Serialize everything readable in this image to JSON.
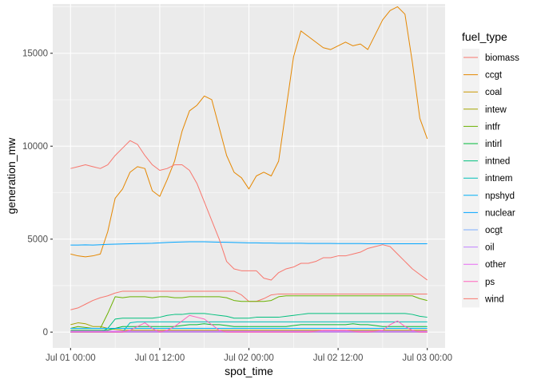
{
  "chart_data": {
    "type": "line",
    "xlabel": "spot_time",
    "ylabel": "generation_mw",
    "x_ticks": [
      "Jul 01 00:00",
      "Jul 01 12:00",
      "Jul 02 00:00",
      "Jul 02 12:00",
      "Jul 03 00:00"
    ],
    "x_tick_hours": [
      0,
      12,
      24,
      36,
      48
    ],
    "xlim_hours": [
      -2.4,
      50.4
    ],
    "y_ticks": [
      0,
      5000,
      10000,
      15000
    ],
    "ylim": [
      -850,
      17650
    ],
    "grid": true,
    "legend": {
      "title": "fuel_type",
      "position": "right"
    },
    "x_hours": [
      0,
      1,
      2,
      3,
      4,
      5,
      6,
      7,
      8,
      9,
      10,
      11,
      12,
      13,
      14,
      15,
      16,
      17,
      18,
      19,
      20,
      21,
      22,
      23,
      24,
      25,
      26,
      27,
      28,
      29,
      30,
      31,
      32,
      33,
      34,
      35,
      36,
      37,
      38,
      39,
      40,
      41,
      42,
      43,
      44,
      45,
      46,
      47,
      48
    ],
    "series": [
      {
        "name": "biomass",
        "color": "#F8766D",
        "values": [
          1200,
          1300,
          1500,
          1700,
          1850,
          1950,
          2100,
          2200,
          2200,
          2200,
          2200,
          2200,
          2200,
          2200,
          2200,
          2200,
          2200,
          2200,
          2200,
          2200,
          2200,
          2200,
          2200,
          2000,
          1650,
          1650,
          1800,
          2000,
          2050,
          2050,
          2050,
          2050,
          2050,
          2050,
          2050,
          2050,
          2050,
          2050,
          2050,
          2050,
          2050,
          2050,
          2050,
          2050,
          2050,
          2050,
          2050,
          2050,
          2050
        ]
      },
      {
        "name": "ccgt",
        "color": "#E58700",
        "values": [
          4200,
          4100,
          4050,
          4100,
          4200,
          5400,
          7200,
          7700,
          8600,
          8900,
          8800,
          7600,
          7300,
          8200,
          9200,
          10800,
          11900,
          12200,
          12700,
          12500,
          11000,
          9500,
          8600,
          8300,
          7700,
          8400,
          8600,
          8400,
          9200,
          12000,
          14800,
          16200,
          15900,
          15600,
          15300,
          15200,
          15400,
          15600,
          15400,
          15500,
          15200,
          16000,
          16800,
          17300,
          17500,
          17100,
          14500,
          11500,
          10400
        ]
      },
      {
        "name": "coal",
        "color": "#C99800",
        "values": [
          0,
          0,
          0,
          0,
          0,
          0,
          0,
          0,
          0,
          0,
          0,
          0,
          0,
          0,
          0,
          0,
          0,
          0,
          0,
          0,
          0,
          0,
          0,
          0,
          0,
          0,
          0,
          0,
          0,
          0,
          0,
          0,
          0,
          0,
          0,
          0,
          0,
          0,
          0,
          0,
          0,
          0,
          0,
          0,
          0,
          0,
          0,
          0,
          0
        ]
      },
      {
        "name": "intew",
        "color": "#A3A500",
        "values": [
          400,
          500,
          450,
          300,
          300,
          200,
          150,
          100,
          100,
          100,
          100,
          100,
          100,
          100,
          100,
          100,
          100,
          100,
          100,
          100,
          100,
          100,
          100,
          100,
          100,
          100,
          100,
          100,
          100,
          100,
          100,
          100,
          100,
          100,
          100,
          100,
          100,
          100,
          100,
          100,
          100,
          100,
          100,
          100,
          100,
          100,
          100,
          100,
          100
        ]
      },
      {
        "name": "intfr",
        "color": "#6BB100",
        "values": [
          200,
          300,
          250,
          200,
          200,
          1000,
          1900,
          1850,
          1900,
          1900,
          1900,
          1850,
          1900,
          1900,
          1850,
          1850,
          1900,
          1900,
          1900,
          1900,
          1900,
          1850,
          1700,
          1650,
          1650,
          1650,
          1650,
          1700,
          1900,
          1950,
          1950,
          1950,
          1950,
          1950,
          1950,
          1950,
          1950,
          1950,
          1950,
          1950,
          1950,
          1950,
          1950,
          1950,
          1950,
          1950,
          1950,
          1800,
          1700
        ]
      },
      {
        "name": "intirl",
        "color": "#00BA38",
        "values": [
          100,
          100,
          100,
          100,
          100,
          100,
          200,
          300,
          300,
          300,
          300,
          300,
          300,
          300,
          300,
          350,
          400,
          400,
          450,
          400,
          400,
          350,
          300,
          300,
          300,
          300,
          300,
          300,
          300,
          300,
          350,
          400,
          400,
          400,
          400,
          400,
          400,
          400,
          450,
          400,
          400,
          350,
          300,
          300,
          300,
          300,
          300,
          300,
          300
        ]
      },
      {
        "name": "intned",
        "color": "#00BF7D",
        "values": [
          0,
          0,
          0,
          0,
          0,
          200,
          700,
          750,
          750,
          750,
          750,
          750,
          800,
          900,
          950,
          950,
          1000,
          1000,
          1000,
          950,
          900,
          850,
          750,
          750,
          750,
          800,
          800,
          800,
          800,
          850,
          900,
          950,
          1000,
          1000,
          1000,
          1000,
          1000,
          1000,
          1000,
          1000,
          1000,
          1000,
          1000,
          1000,
          1000,
          1000,
          950,
          850,
          800
        ]
      },
      {
        "name": "intnem",
        "color": "#00C0B8",
        "values": [
          0,
          0,
          0,
          0,
          0,
          0,
          0,
          0,
          500,
          550,
          550,
          550,
          550,
          550,
          550,
          550,
          550,
          550,
          550,
          550,
          550,
          550,
          550,
          550,
          550,
          550,
          550,
          550,
          550,
          550,
          550,
          550,
          550,
          550,
          550,
          550,
          550,
          550,
          550,
          550,
          550,
          550,
          550,
          550,
          550,
          550,
          550,
          550,
          550
        ]
      },
      {
        "name": "npshyd",
        "color": "#00B0F6",
        "values": [
          200,
          200,
          200,
          200,
          200,
          200,
          200,
          200,
          200,
          200,
          200,
          200,
          200,
          200,
          200,
          200,
          200,
          200,
          200,
          200,
          200,
          200,
          200,
          200,
          200,
          200,
          200,
          200,
          200,
          200,
          200,
          200,
          200,
          200,
          200,
          200,
          200,
          200,
          200,
          200,
          200,
          200,
          200,
          200,
          200,
          200,
          200,
          200,
          200
        ]
      },
      {
        "name": "nuclear",
        "color": "#00A5FF",
        "values": [
          4680,
          4680,
          4690,
          4680,
          4700,
          4720,
          4730,
          4740,
          4750,
          4760,
          4770,
          4780,
          4800,
          4820,
          4840,
          4850,
          4860,
          4860,
          4860,
          4850,
          4840,
          4830,
          4820,
          4810,
          4800,
          4800,
          4790,
          4790,
          4780,
          4780,
          4780,
          4780,
          4770,
          4770,
          4770,
          4770,
          4760,
          4760,
          4760,
          4760,
          4750,
          4750,
          4750,
          4750,
          4750,
          4750,
          4750,
          4750,
          4750
        ]
      },
      {
        "name": "ocgt",
        "color": "#7CAEFF",
        "values": [
          20,
          20,
          20,
          20,
          20,
          20,
          20,
          20,
          20,
          20,
          20,
          20,
          20,
          20,
          20,
          20,
          20,
          20,
          20,
          20,
          20,
          20,
          20,
          20,
          20,
          20,
          20,
          20,
          20,
          20,
          20,
          20,
          20,
          20,
          20,
          20,
          20,
          20,
          20,
          20,
          20,
          20,
          20,
          20,
          20,
          20,
          20,
          20,
          20
        ]
      },
      {
        "name": "oil",
        "color": "#BF80FF",
        "values": [
          0,
          0,
          0,
          0,
          0,
          0,
          0,
          0,
          0,
          0,
          0,
          0,
          0,
          0,
          0,
          0,
          0,
          0,
          0,
          0,
          0,
          0,
          0,
          0,
          0,
          0,
          0,
          0,
          0,
          0,
          0,
          0,
          0,
          0,
          0,
          0,
          0,
          0,
          0,
          0,
          0,
          0,
          0,
          0,
          0,
          0,
          0,
          0,
          0
        ]
      },
      {
        "name": "other",
        "color": "#E76BF3",
        "values": [
          50,
          50,
          50,
          50,
          50,
          50,
          50,
          50,
          50,
          50,
          50,
          50,
          50,
          50,
          50,
          50,
          50,
          50,
          50,
          50,
          50,
          50,
          50,
          50,
          50,
          50,
          50,
          50,
          50,
          50,
          50,
          50,
          50,
          50,
          50,
          50,
          50,
          50,
          50,
          50,
          50,
          50,
          50,
          50,
          50,
          50,
          50,
          50,
          50
        ]
      },
      {
        "name": "ps",
        "color": "#FF62BC",
        "values": [
          0,
          0,
          0,
          0,
          0,
          0,
          0,
          0,
          100,
          300,
          500,
          200,
          0,
          100,
          300,
          600,
          900,
          800,
          700,
          400,
          100,
          0,
          0,
          0,
          0,
          0,
          0,
          0,
          0,
          0,
          0,
          0,
          0,
          50,
          100,
          100,
          100,
          100,
          50,
          0,
          0,
          50,
          100,
          400,
          600,
          300,
          100,
          0,
          0
        ]
      },
      {
        "name": "wind",
        "color": "#F8766D",
        "values": [
          8800,
          8900,
          9000,
          8900,
          8800,
          9000,
          9500,
          9900,
          10300,
          10100,
          9500,
          9000,
          8700,
          8800,
          9000,
          9000,
          8700,
          8000,
          7000,
          6000,
          5000,
          3800,
          3400,
          3300,
          3300,
          3300,
          2900,
          2800,
          3200,
          3400,
          3500,
          3700,
          3700,
          3800,
          4000,
          4000,
          4100,
          4100,
          4200,
          4300,
          4500,
          4600,
          4700,
          4600,
          4200,
          3800,
          3400,
          3100,
          2800
        ]
      }
    ]
  }
}
